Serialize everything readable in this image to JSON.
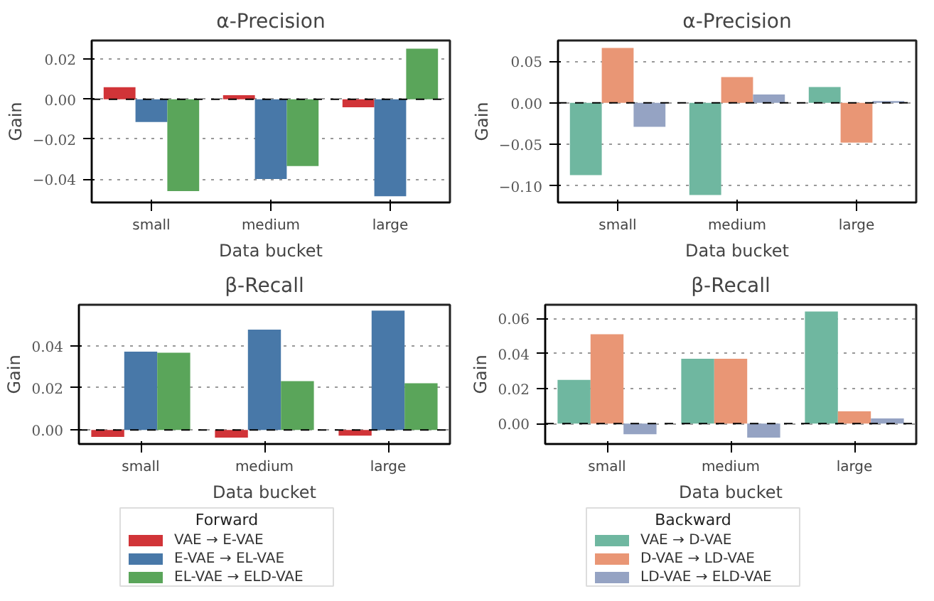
{
  "chart_data": [
    {
      "type": "bar",
      "title": "α-Precision",
      "xlabel": "Data bucket",
      "ylabel": "Gain",
      "categories": [
        "small",
        "medium",
        "large"
      ],
      "ylim": [
        -0.0517,
        0.0294
      ],
      "yticks": [
        {
          "value": -0.04,
          "label": "−0.04"
        },
        {
          "value": -0.02,
          "label": "−0.02"
        },
        {
          "value": 0,
          "label": "0.00"
        },
        {
          "value": 0.02,
          "label": "0.02"
        }
      ],
      "grid": "y",
      "ref_lines": [
        {
          "axis": "y",
          "value": 0,
          "color": "#000000",
          "line_style": "dashed"
        }
      ],
      "series": [
        {
          "color": "#d13438",
          "values": [
            0.006,
            0.002,
            -0.004
          ]
        },
        {
          "color": "#4878a8",
          "values": [
            -0.0114,
            -0.04,
            -0.0486
          ]
        },
        {
          "color": "#5aa55a",
          "values": [
            -0.046,
            -0.0335,
            0.0253
          ]
        }
      ]
    },
    {
      "type": "bar",
      "title": "α-Precision",
      "xlabel": "Data bucket",
      "ylabel": "Gain",
      "categories": [
        "small",
        "medium",
        "large"
      ],
      "ylim": [
        -0.12,
        0.075
      ],
      "yticks": [
        {
          "value": -0.1,
          "label": "−0.10"
        },
        {
          "value": -0.05,
          "label": "−0.05"
        },
        {
          "value": 0,
          "label": "0.00"
        },
        {
          "value": 0.05,
          "label": "0.05"
        }
      ],
      "grid": "y",
      "ref_lines": [
        {
          "axis": "y",
          "value": 0,
          "color": "#000000",
          "line_style": "dashed"
        }
      ],
      "series": [
        {
          "color": "#6fb7a0",
          "values": [
            -0.087,
            -0.111,
            0.019
          ]
        },
        {
          "color": "#e99675",
          "values": [
            0.066,
            0.031,
            -0.048
          ]
        },
        {
          "color": "#95a3c3",
          "values": [
            -0.029,
            0.01,
            0.002
          ]
        }
      ]
    },
    {
      "type": "bar",
      "title": "β-Recall",
      "xlabel": "Data bucket",
      "ylabel": "Gain",
      "categories": [
        "small",
        "medium",
        "large"
      ],
      "ylim": [
        -0.0067,
        0.0595
      ],
      "yticks": [
        {
          "value": 0,
          "label": "0.00"
        },
        {
          "value": 0.02,
          "label": "0.02"
        },
        {
          "value": 0.04,
          "label": "0.04"
        }
      ],
      "grid": "y",
      "ref_lines": [
        {
          "axis": "y",
          "value": 0,
          "color": "#000000",
          "line_style": "dashed"
        }
      ],
      "legend": "bottom",
      "legend_title": "Forward",
      "series": [
        {
          "name": "VAE → E-VAE",
          "color": "#d13438",
          "values": [
            -0.0033,
            -0.0037,
            -0.0027
          ]
        },
        {
          "name": "E-VAE → EL-VAE",
          "color": "#4878a8",
          "values": [
            0.0372,
            0.0477,
            0.0567
          ]
        },
        {
          "name": "EL-VAE → ELD-VAE",
          "color": "#5aa55a",
          "values": [
            0.0367,
            0.0232,
            0.0222
          ]
        }
      ]
    },
    {
      "type": "bar",
      "title": "β-Recall",
      "xlabel": "Data bucket",
      "ylabel": "Gain",
      "categories": [
        "small",
        "medium",
        "large"
      ],
      "ylim": [
        -0.0116,
        0.0678
      ],
      "yticks": [
        {
          "value": 0,
          "label": "0.00"
        },
        {
          "value": 0.02,
          "label": "0.02"
        },
        {
          "value": 0.04,
          "label": "0.04"
        },
        {
          "value": 0.06,
          "label": "0.06"
        }
      ],
      "grid": "y",
      "ref_lines": [
        {
          "axis": "y",
          "value": 0,
          "color": "#000000",
          "line_style": "dashed"
        }
      ],
      "legend": "bottom",
      "legend_title": "Backward",
      "series": [
        {
          "name": "VAE → D-VAE",
          "color": "#6fb7a0",
          "values": [
            0.025,
            0.037,
            0.064
          ]
        },
        {
          "name": "D-VAE → LD-VAE",
          "color": "#e99675",
          "values": [
            0.051,
            0.037,
            0.007
          ]
        },
        {
          "name": "LD-VAE → ELD-VAE",
          "color": "#95a3c3",
          "values": [
            -0.006,
            -0.008,
            0.003
          ]
        }
      ]
    }
  ]
}
